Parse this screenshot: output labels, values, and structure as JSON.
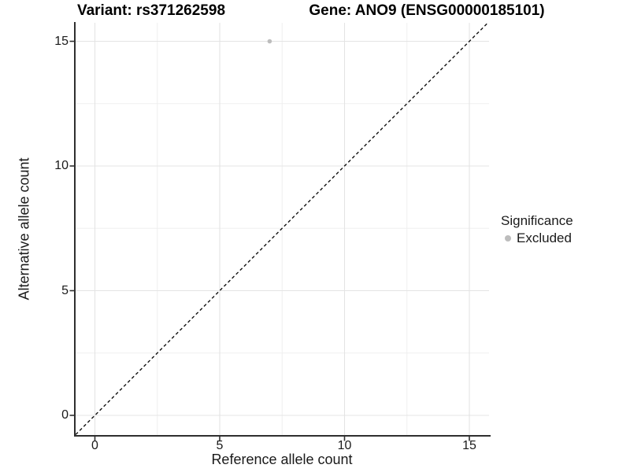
{
  "header": {
    "variant_title": "Variant: rs371262598",
    "gene_title": "Gene: ANO9 (ENSG00000185101)"
  },
  "axes": {
    "x": {
      "label": "Reference allele count",
      "tick_labels": [
        "0",
        "5",
        "10",
        "15"
      ]
    },
    "y": {
      "label": "Alternative allele count",
      "tick_labels": [
        "0",
        "5",
        "10",
        "15"
      ]
    }
  },
  "legend": {
    "title": "Significance",
    "items": [
      {
        "label": "Excluded",
        "color": "#bdbdbd"
      }
    ]
  },
  "colors": {
    "point": "#bdbdbd",
    "axis_line": "#2f2f2f",
    "major_grid": "#e4e4e4",
    "minor_grid": "#efefef",
    "reference_line": "#111111",
    "text": "#1a1a1a"
  },
  "chart_data": {
    "type": "scatter",
    "title": "Variant: rs371262598 | Gene: ANO9 (ENSG00000185101)",
    "xlabel": "Reference allele count",
    "ylabel": "Alternative allele count",
    "xlim": [
      -0.77,
      15.77
    ],
    "ylim": [
      -0.77,
      15.77
    ],
    "major_ticks": [
      0,
      5,
      10,
      15
    ],
    "minor_gridlines": [
      2.5,
      7.5,
      12.5
    ],
    "grid": "major+minor",
    "points": [
      {
        "x": 7,
        "y": 15,
        "series": "Excluded",
        "color": "#bdbdbd"
      }
    ],
    "reference_line": {
      "type": "identity",
      "slope": 1,
      "intercept": 0,
      "style": "dashed",
      "color": "#111111"
    },
    "legend_position": "right"
  }
}
